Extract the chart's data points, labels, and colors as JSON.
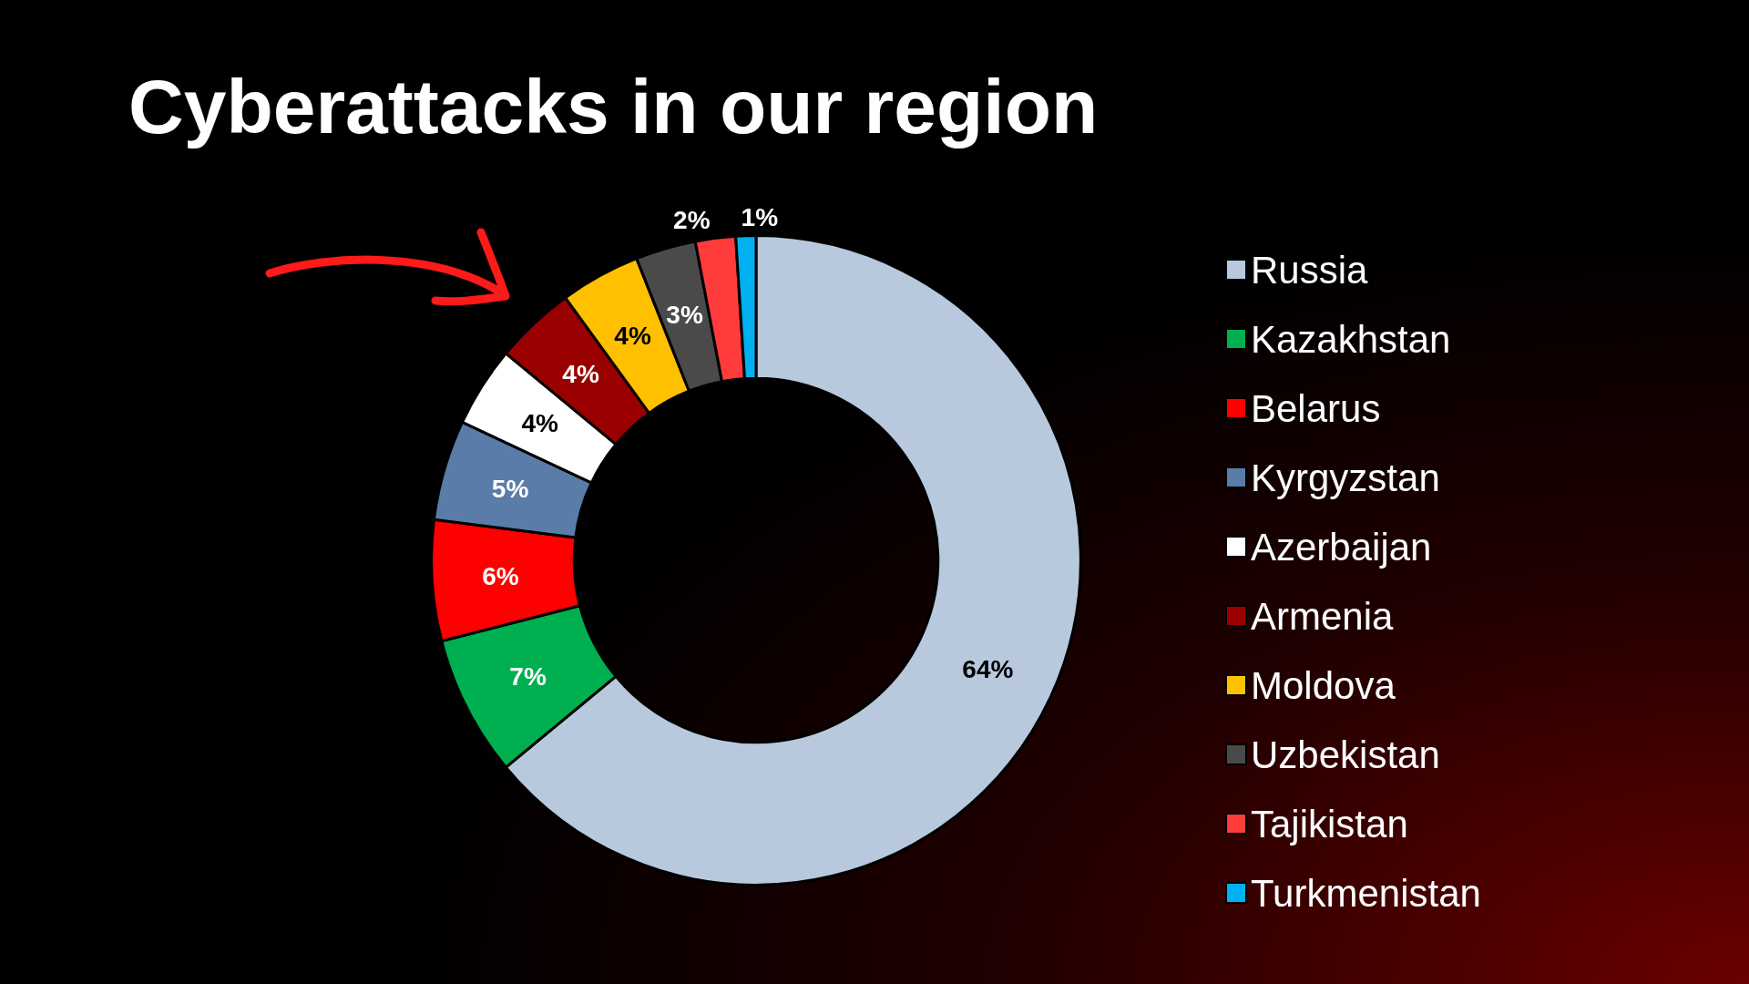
{
  "chart_data": {
    "type": "donut",
    "title": "Cyberattacks in our region",
    "categories": [
      "Russia",
      "Kazakhstan",
      "Belarus",
      "Kyrgyzstan",
      "Azerbaijan",
      "Armenia",
      "Moldova",
      "Uzbekistan",
      "Tajikistan",
      "Turkmenistan"
    ],
    "values": [
      64,
      7,
      6,
      5,
      4,
      4,
      4,
      3,
      2,
      1
    ],
    "colors": [
      "#b8c9dd",
      "#00b050",
      "#ff0000",
      "#5a7ca8",
      "#ffffff",
      "#9b0000",
      "#ffc000",
      "#4a4a4a",
      "#ff3b3b",
      "#00b0f0"
    ],
    "value_labels": [
      "64%",
      "7%",
      "6%",
      "5%",
      "4%",
      "4%",
      "4%",
      "3%",
      "2%",
      "1%"
    ],
    "legend": "right"
  }
}
